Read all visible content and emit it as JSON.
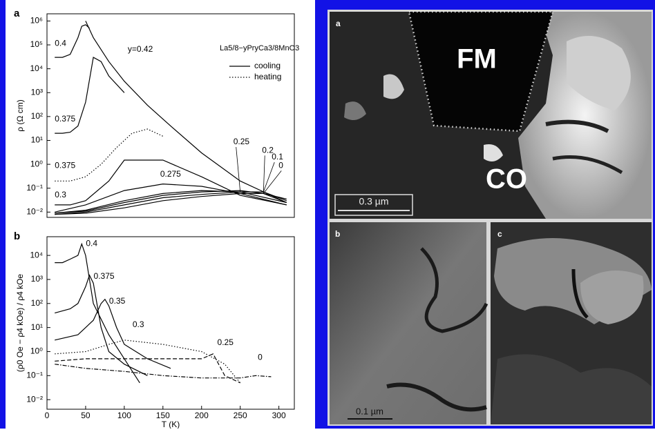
{
  "chart_data": [
    {
      "type": "line",
      "panel_label": "a",
      "title": "La5/8−yPryCa3/8MnO3",
      "y_label": "ρ (Ω cm)",
      "log_y": true,
      "xlim": [
        0,
        320
      ],
      "ylim": [
        0.006,
        2000000
      ],
      "yticks": [
        {
          "value": 1000000,
          "label": "10⁶"
        },
        {
          "value": 100000,
          "label": "10⁵"
        },
        {
          "value": 10000,
          "label": "10⁴"
        },
        {
          "value": 1000,
          "label": "10³"
        },
        {
          "value": 100,
          "label": "10²"
        },
        {
          "value": 10,
          "label": "10¹"
        },
        {
          "value": 1,
          "label": "10⁰"
        },
        {
          "value": 0.1,
          "label": "10⁻¹"
        },
        {
          "value": 0.01,
          "label": "10⁻²"
        }
      ],
      "legend": [
        {
          "label": "cooling",
          "dash": "solid"
        },
        {
          "label": "heating",
          "dash": "dotted"
        }
      ],
      "series": [
        {
          "name": "0.4",
          "color": "#000000",
          "dash": "solid",
          "x": [
            10,
            20,
            30,
            40,
            45,
            50,
            55
          ],
          "values": [
            30000,
            30000,
            40000,
            200000,
            600000,
            700000,
            500000
          ]
        },
        {
          "name": "y=0.42",
          "color": "#000000",
          "dash": "solid",
          "x": [
            50,
            60,
            80,
            100,
            130,
            160,
            200,
            250,
            310
          ],
          "values": [
            1000000,
            200000,
            20000,
            3000,
            300,
            40,
            3,
            0.2,
            0.025
          ]
        },
        {
          "name": "0.375",
          "color": "#000000",
          "dash": "solid",
          "x": [
            10,
            20,
            30,
            40,
            50,
            60,
            70,
            80,
            100
          ],
          "values": [
            20,
            20,
            22,
            40,
            400,
            30000,
            20000,
            5000,
            1000
          ]
        },
        {
          "name": "0.375",
          "color": "#000000",
          "dash": "dotted",
          "x": [
            10,
            30,
            50,
            70,
            90,
            110,
            130,
            150
          ],
          "values": [
            0.2,
            0.2,
            0.3,
            1,
            5,
            20,
            30,
            15
          ]
        },
        {
          "name": "0.3",
          "color": "#000000",
          "dash": "solid",
          "x": [
            10,
            30,
            50,
            80,
            100,
            150,
            200,
            250,
            310
          ],
          "values": [
            0.02,
            0.02,
            0.03,
            0.2,
            1.5,
            1.5,
            0.3,
            0.05,
            0.02
          ]
        },
        {
          "name": "0.275",
          "color": "#000000",
          "dash": "solid",
          "x": [
            10,
            50,
            100,
            150,
            200,
            250,
            310
          ],
          "values": [
            0.01,
            0.02,
            0.08,
            0.15,
            0.12,
            0.06,
            0.02
          ]
        },
        {
          "name": "0.25",
          "color": "#000000",
          "dash": "solid",
          "x": [
            10,
            50,
            100,
            150,
            200,
            250,
            310
          ],
          "values": [
            0.009,
            0.012,
            0.03,
            0.06,
            0.08,
            0.07,
            0.025
          ]
        },
        {
          "name": "0.2",
          "color": "#000000",
          "dash": "solid",
          "x": [
            10,
            50,
            100,
            150,
            200,
            250,
            280,
            310
          ],
          "values": [
            0.009,
            0.011,
            0.025,
            0.05,
            0.07,
            0.08,
            0.06,
            0.025
          ]
        },
        {
          "name": "0.1",
          "color": "#000000",
          "dash": "solid",
          "x": [
            10,
            50,
            100,
            150,
            200,
            250,
            280,
            310
          ],
          "values": [
            0.008,
            0.01,
            0.02,
            0.04,
            0.055,
            0.07,
            0.07,
            0.03
          ]
        },
        {
          "name": "0",
          "color": "#000000",
          "dash": "solid",
          "x": [
            10,
            50,
            100,
            150,
            200,
            250,
            280,
            310
          ],
          "values": [
            0.008,
            0.009,
            0.015,
            0.03,
            0.045,
            0.06,
            0.06,
            0.035
          ]
        }
      ]
    },
    {
      "type": "line",
      "panel_label": "b",
      "y_label": "(ρ0 Oe − ρ4 kOe) / ρ4 kOe",
      "x_label": "T (K)",
      "log_y": true,
      "xlim": [
        0,
        320
      ],
      "ylim": [
        0.004,
        60000
      ],
      "xticks": [
        0,
        50,
        100,
        150,
        200,
        250,
        300
      ],
      "yticks": [
        {
          "value": 10000,
          "label": "10⁴"
        },
        {
          "value": 1000,
          "label": "10³"
        },
        {
          "value": 100,
          "label": "10²"
        },
        {
          "value": 10,
          "label": "10¹"
        },
        {
          "value": 1,
          "label": "10⁰"
        },
        {
          "value": 0.1,
          "label": "10⁻¹"
        },
        {
          "value": 0.01,
          "label": "10⁻²"
        }
      ],
      "series": [
        {
          "name": "0.4",
          "color": "#000000",
          "dash": "solid",
          "x": [
            10,
            20,
            30,
            40,
            45,
            50,
            60,
            80,
            100,
            120
          ],
          "values": [
            5000,
            5000,
            7000,
            10000,
            30000,
            10000,
            100,
            5,
            0.5,
            0.05
          ]
        },
        {
          "name": "0.375",
          "color": "#000000",
          "dash": "solid",
          "x": [
            10,
            30,
            40,
            50,
            55,
            60,
            70,
            80,
            100,
            130
          ],
          "values": [
            40,
            60,
            100,
            500,
            1500,
            700,
            10,
            1,
            0.3,
            0.1
          ]
        },
        {
          "name": "0.35",
          "color": "#000000",
          "dash": "solid",
          "x": [
            10,
            40,
            60,
            70,
            75,
            80,
            90,
            100,
            130,
            160
          ],
          "values": [
            3,
            5,
            20,
            100,
            150,
            80,
            10,
            2,
            0.5,
            0.2
          ]
        },
        {
          "name": "0.3",
          "color": "#000000",
          "dash": "dotted",
          "x": [
            10,
            50,
            80,
            100,
            150,
            200,
            230,
            250
          ],
          "values": [
            0.8,
            1,
            2,
            3,
            2,
            1,
            0.3,
            0.05
          ]
        },
        {
          "name": "0.25",
          "color": "#000000",
          "dash": "dashed",
          "x": [
            10,
            50,
            100,
            150,
            200,
            215,
            230,
            250
          ],
          "values": [
            0.4,
            0.5,
            0.5,
            0.5,
            0.5,
            0.8,
            0.1,
            0.05
          ]
        },
        {
          "name": "0",
          "color": "#000000",
          "dash": "dashdot",
          "x": [
            10,
            50,
            100,
            150,
            200,
            250,
            270,
            290
          ],
          "values": [
            0.3,
            0.2,
            0.15,
            0.1,
            0.08,
            0.08,
            0.1,
            0.09
          ]
        }
      ]
    }
  ],
  "micrographs": [
    {
      "label": "a",
      "annotations": [
        "FM",
        "CO"
      ],
      "scale_bar": "0.3 µm"
    },
    {
      "label": "b",
      "scale_bar": "0.1 µm"
    },
    {
      "label": "c"
    }
  ]
}
